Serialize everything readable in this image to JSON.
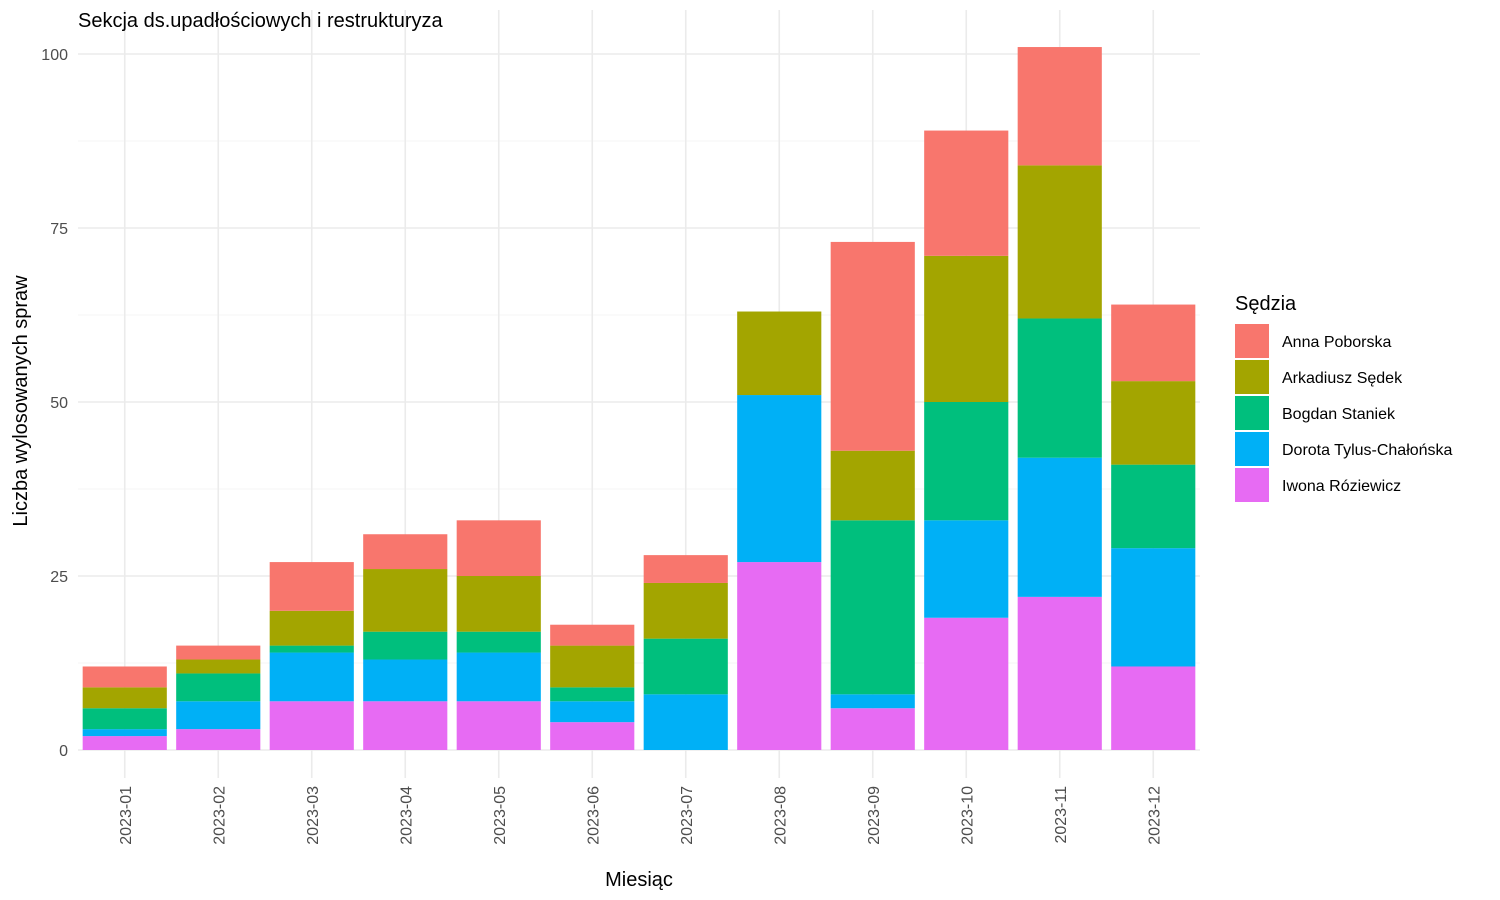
{
  "chart_data": {
    "type": "bar",
    "stacked": true,
    "title": "Sekcja ds.upadłościowych i restrukturyza",
    "xlabel": "Miesiąc",
    "ylabel": "Liczba wylosowanych spraw",
    "ylim": [
      0,
      103
    ],
    "yticks": [
      0,
      25,
      50,
      75,
      100
    ],
    "grid": true,
    "legend_position": "right",
    "legend_title": "Sędzia",
    "categories": [
      "2023-01",
      "2023-02",
      "2023-03",
      "2023-04",
      "2023-05",
      "2023-06",
      "2023-07",
      "2023-08",
      "2023-09",
      "2023-10",
      "2023-11",
      "2023-12"
    ],
    "series": [
      {
        "name": "Anna Poborska",
        "color": "#F8766D",
        "values": [
          3,
          2,
          7,
          5,
          8,
          3,
          4,
          0,
          30,
          18,
          17,
          11
        ]
      },
      {
        "name": "Arkadiusz Sędek",
        "color": "#A3A500",
        "values": [
          3,
          2,
          5,
          9,
          8,
          6,
          8,
          12,
          10,
          21,
          22,
          12
        ]
      },
      {
        "name": "Bogdan Staniek",
        "color": "#00BF7D",
        "values": [
          3,
          4,
          1,
          4,
          3,
          2,
          8,
          0,
          25,
          17,
          20,
          12
        ]
      },
      {
        "name": "Dorota Tylus-Chałońska",
        "color": "#00B0F6",
        "values": [
          1,
          4,
          7,
          6,
          7,
          3,
          8,
          24,
          2,
          14,
          20,
          17
        ]
      },
      {
        "name": "Iwona Róziewicz",
        "color": "#E76BF3",
        "values": [
          2,
          3,
          7,
          7,
          7,
          4,
          0,
          27,
          6,
          19,
          22,
          12
        ]
      }
    ]
  }
}
